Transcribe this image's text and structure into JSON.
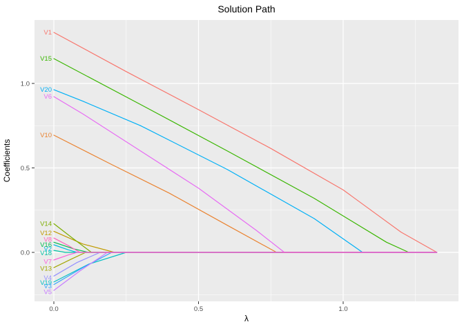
{
  "chart_data": {
    "type": "line",
    "title": "Solution Path",
    "xlabel": "λ",
    "ylabel": "Coefficients",
    "panel_background": "#EBEBEB",
    "gridline_color": "#FFFFFF",
    "tick_label_color": "#4D4D4D",
    "x_ticks": [
      {
        "value": 0.0,
        "label": "0.0"
      },
      {
        "value": 0.5,
        "label": "0.5"
      },
      {
        "value": 1.0,
        "label": "1.0"
      }
    ],
    "y_ticks": [
      {
        "value": 0.0,
        "label": "0.0"
      },
      {
        "value": 0.5,
        "label": "0.5"
      },
      {
        "value": 1.0,
        "label": "1.0"
      }
    ],
    "x_minor_ticks": [
      0.25,
      0.75,
      1.25
    ],
    "y_minor_ticks": [
      -0.25,
      0.25,
      0.75
    ],
    "xlim": [
      -0.067,
      1.398
    ],
    "ylim": [
      -0.29,
      1.376
    ],
    "grid": true,
    "legend_position": "none",
    "series": [
      {
        "name": "V1",
        "color": "#F8766D",
        "label_y": 1.302,
        "points": [
          [
            0,
            1.302
          ],
          [
            0.25,
            1.07
          ],
          [
            0.5,
            0.845
          ],
          [
            0.75,
            0.615
          ],
          [
            1.0,
            0.37
          ],
          [
            1.2,
            0.12
          ],
          [
            1.324,
            0
          ]
        ]
      },
      {
        "name": "V10",
        "color": "#EA8331",
        "label_y": 0.694,
        "points": [
          [
            0,
            0.694
          ],
          [
            0.2,
            0.52
          ],
          [
            0.4,
            0.35
          ],
          [
            0.6,
            0.16
          ],
          [
            0.77,
            0
          ],
          [
            1.324,
            0
          ]
        ]
      },
      {
        "name": "V12",
        "color": "#C09B00",
        "label_y": 0.115,
        "points": [
          [
            0,
            0.125
          ],
          [
            0.1,
            0.05
          ],
          [
            0.21,
            0
          ],
          [
            1.324,
            0
          ]
        ]
      },
      {
        "name": "V13",
        "color": "#A3A500",
        "label_y": -0.095,
        "points": [
          [
            0,
            -0.09
          ],
          [
            0.06,
            -0.04
          ],
          [
            0.11,
            0
          ],
          [
            1.324,
            0
          ]
        ]
      },
      {
        "name": "V14",
        "color": "#7CAE00",
        "label_y": 0.17,
        "points": [
          [
            0,
            0.17
          ],
          [
            0.06,
            0.09
          ],
          [
            0.13,
            0
          ],
          [
            1.324,
            0
          ]
        ]
      },
      {
        "name": "V15",
        "color": "#39B600",
        "label_y": 1.147,
        "points": [
          [
            0,
            1.147
          ],
          [
            0.3,
            0.875
          ],
          [
            0.6,
            0.6
          ],
          [
            0.9,
            0.32
          ],
          [
            1.15,
            0.06
          ],
          [
            1.227,
            0
          ],
          [
            1.324,
            0
          ]
        ]
      },
      {
        "name": "V16",
        "color": "#00BB4E",
        "label_y": 0.045,
        "points": [
          [
            0,
            0.06
          ],
          [
            0.07,
            0.02
          ],
          [
            0.12,
            0
          ],
          [
            1.324,
            0
          ]
        ]
      },
      {
        "name": "V18",
        "color": "#00C1A3",
        "label_y": -0.005,
        "points": [
          [
            0,
            0.012
          ],
          [
            0.04,
            0
          ],
          [
            1.324,
            0
          ]
        ]
      },
      {
        "name": "V19",
        "color": "#00BFC4",
        "label_y": -0.18,
        "points": [
          [
            0,
            -0.175
          ],
          [
            0.12,
            -0.07
          ],
          [
            0.25,
            0
          ],
          [
            1.324,
            0
          ]
        ]
      },
      {
        "name": "V2",
        "color": "#00BAE0",
        "label_y": 0.02,
        "points": [
          [
            0,
            0.045
          ],
          [
            0.05,
            0.015
          ],
          [
            0.08,
            0
          ],
          [
            1.324,
            0
          ]
        ]
      },
      {
        "name": "V20",
        "color": "#00B0F6",
        "label_y": 0.963,
        "points": [
          [
            0,
            0.963
          ],
          [
            0.1,
            0.895
          ],
          [
            0.3,
            0.75
          ],
          [
            0.6,
            0.49
          ],
          [
            0.9,
            0.2
          ],
          [
            1.067,
            0
          ],
          [
            1.324,
            0
          ]
        ]
      },
      {
        "name": "V3",
        "color": "#35A2FF",
        "label_y": -0.2,
        "points": [
          [
            0,
            -0.19
          ],
          [
            0.1,
            -0.09
          ],
          [
            0.2,
            0
          ],
          [
            1.324,
            0
          ]
        ]
      },
      {
        "name": "V4",
        "color": "#9590FF",
        "label_y": -0.15,
        "points": [
          [
            0,
            -0.14
          ],
          [
            0.08,
            -0.06
          ],
          [
            0.16,
            0
          ],
          [
            1.324,
            0
          ]
        ]
      },
      {
        "name": "V5",
        "color": "#C77CFF",
        "label_y": -0.235,
        "points": [
          [
            0,
            -0.225
          ],
          [
            0.09,
            -0.11
          ],
          [
            0.185,
            0
          ],
          [
            1.324,
            0
          ]
        ]
      },
      {
        "name": "V6",
        "color": "#E76BF3",
        "label_y": 0.922,
        "points": [
          [
            0,
            0.922
          ],
          [
            0.1,
            0.82
          ],
          [
            0.3,
            0.6
          ],
          [
            0.5,
            0.38
          ],
          [
            0.7,
            0.13
          ],
          [
            0.797,
            0
          ],
          [
            1.324,
            0
          ]
        ]
      },
      {
        "name": "V7",
        "color": "#FA62DB",
        "label_y": -0.055,
        "points": [
          [
            0,
            -0.045
          ],
          [
            0.05,
            -0.015
          ],
          [
            0.08,
            0
          ],
          [
            1.324,
            0
          ]
        ]
      },
      {
        "name": "V8",
        "color": "#FF62BC",
        "label_y": 0.075,
        "points": [
          [
            0,
            0.085
          ],
          [
            0.05,
            0.04
          ],
          [
            0.09,
            0
          ],
          [
            1.324,
            0
          ]
        ]
      }
    ]
  }
}
